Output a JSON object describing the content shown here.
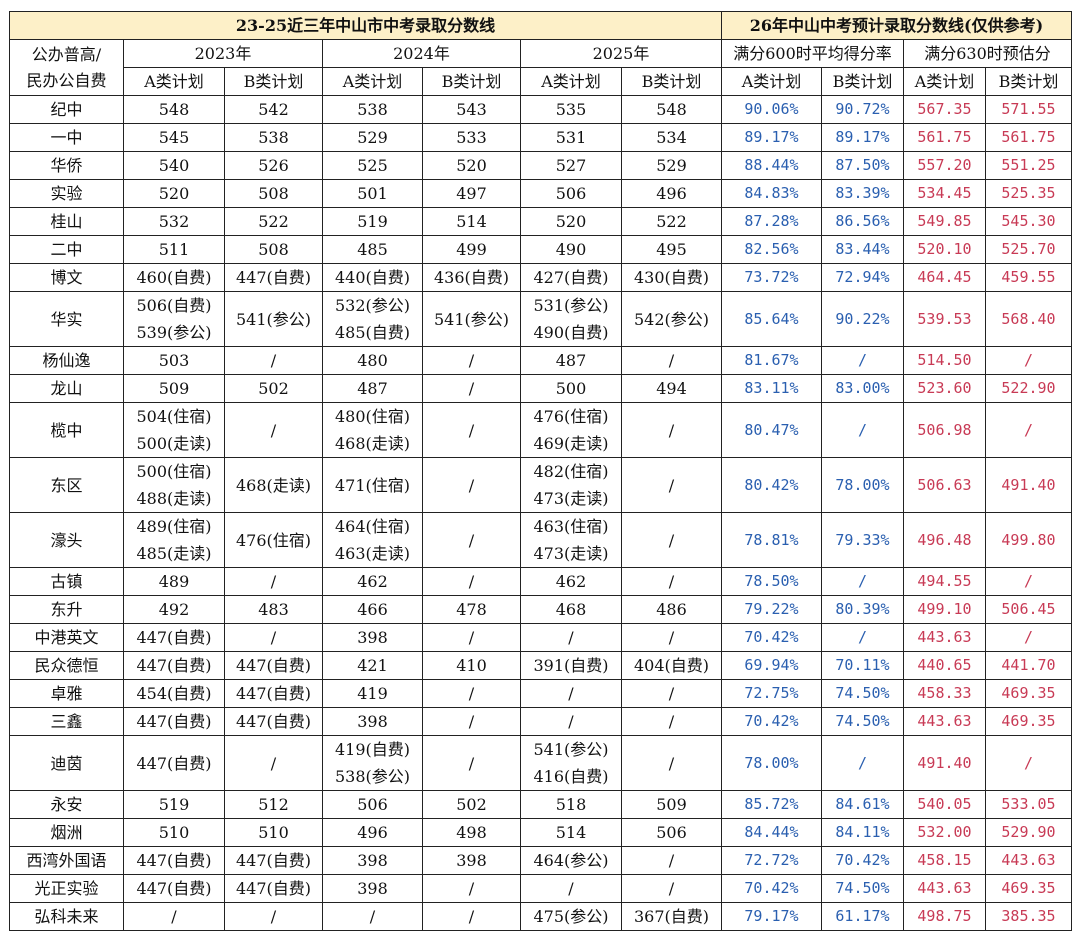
{
  "header": {
    "left_title": "23-25近三年中山市中考录取分数线",
    "right_title": "26年中山中考预计录取分数线(仅供参考)",
    "school_col_line1": "公办普高/",
    "school_col_line2": "民办公自费",
    "year_2023": "2023年",
    "year_2024": "2024年",
    "year_2025": "2025年",
    "rate_header": "满分600时平均得分率",
    "est_header": "满分630时预估分",
    "a_plan": "A类计划",
    "b_plan": "B类计划"
  },
  "rows": [
    {
      "school": "纪中",
      "y23a": [
        "548"
      ],
      "y23b": [
        "542"
      ],
      "y24a": [
        "538"
      ],
      "y24b": [
        "543"
      ],
      "y25a": [
        "535"
      ],
      "y25b": [
        "548"
      ],
      "rate_a": "90.06%",
      "rate_b": "90.72%",
      "est_a": "567.35",
      "est_b": "571.55"
    },
    {
      "school": "一中",
      "y23a": [
        "545"
      ],
      "y23b": [
        "538"
      ],
      "y24a": [
        "529"
      ],
      "y24b": [
        "533"
      ],
      "y25a": [
        "531"
      ],
      "y25b": [
        "534"
      ],
      "rate_a": "89.17%",
      "rate_b": "89.17%",
      "est_a": "561.75",
      "est_b": "561.75"
    },
    {
      "school": "华侨",
      "y23a": [
        "540"
      ],
      "y23b": [
        "526"
      ],
      "y24a": [
        "525"
      ],
      "y24b": [
        "520"
      ],
      "y25a": [
        "527"
      ],
      "y25b": [
        "529"
      ],
      "rate_a": "88.44%",
      "rate_b": "87.50%",
      "est_a": "557.20",
      "est_b": "551.25"
    },
    {
      "school": "实验",
      "y23a": [
        "520"
      ],
      "y23b": [
        "508"
      ],
      "y24a": [
        "501"
      ],
      "y24b": [
        "497"
      ],
      "y25a": [
        "506"
      ],
      "y25b": [
        "496"
      ],
      "rate_a": "84.83%",
      "rate_b": "83.39%",
      "est_a": "534.45",
      "est_b": "525.35"
    },
    {
      "school": "桂山",
      "y23a": [
        "532"
      ],
      "y23b": [
        "522"
      ],
      "y24a": [
        "519"
      ],
      "y24b": [
        "514"
      ],
      "y25a": [
        "520"
      ],
      "y25b": [
        "522"
      ],
      "rate_a": "87.28%",
      "rate_b": "86.56%",
      "est_a": "549.85",
      "est_b": "545.30"
    },
    {
      "school": "二中",
      "y23a": [
        "511"
      ],
      "y23b": [
        "508"
      ],
      "y24a": [
        "485"
      ],
      "y24b": [
        "499"
      ],
      "y25a": [
        "490"
      ],
      "y25b": [
        "495"
      ],
      "rate_a": "82.56%",
      "rate_b": "83.44%",
      "est_a": "520.10",
      "est_b": "525.70"
    },
    {
      "school": "博文",
      "y23a": [
        "460(自费)"
      ],
      "y23b": [
        "447(自费)"
      ],
      "y24a": [
        "440(自费)"
      ],
      "y24b": [
        "436(自费)"
      ],
      "y25a": [
        "427(自费)"
      ],
      "y25b": [
        "430(自费)"
      ],
      "rate_a": "73.72%",
      "rate_b": "72.94%",
      "est_a": "464.45",
      "est_b": "459.55"
    },
    {
      "school": "华实",
      "y23a": [
        "506(自费)",
        "539(参公)"
      ],
      "y23b": [
        "541(参公)"
      ],
      "y24a": [
        "532(参公)",
        "485(自费)"
      ],
      "y24b": [
        "541(参公)"
      ],
      "y25a": [
        "531(参公)",
        "490(自费)"
      ],
      "y25b": [
        "542(参公)"
      ],
      "rate_a": "85.64%",
      "rate_b": "90.22%",
      "est_a": "539.53",
      "est_b": "568.40"
    },
    {
      "school": "杨仙逸",
      "y23a": [
        "503"
      ],
      "y23b": [
        "/"
      ],
      "y24a": [
        "480"
      ],
      "y24b": [
        "/"
      ],
      "y25a": [
        "487"
      ],
      "y25b": [
        "/"
      ],
      "rate_a": "81.67%",
      "rate_b": "/",
      "est_a": "514.50",
      "est_b": "/"
    },
    {
      "school": "龙山",
      "y23a": [
        "509"
      ],
      "y23b": [
        "502"
      ],
      "y24a": [
        "487"
      ],
      "y24b": [
        "/"
      ],
      "y25a": [
        "500"
      ],
      "y25b": [
        "494"
      ],
      "rate_a": "83.11%",
      "rate_b": "83.00%",
      "est_a": "523.60",
      "est_b": "522.90"
    },
    {
      "school": "榄中",
      "y23a": [
        "504(住宿)",
        "500(走读)"
      ],
      "y23b": [
        "/"
      ],
      "y24a": [
        "480(住宿)",
        "468(走读)"
      ],
      "y24b": [
        "/"
      ],
      "y25a": [
        "476(住宿)",
        "469(走读)"
      ],
      "y25b": [
        "/"
      ],
      "rate_a": "80.47%",
      "rate_b": "/",
      "est_a": "506.98",
      "est_b": "/"
    },
    {
      "school": "东区",
      "y23a": [
        "500(住宿)",
        "488(走读)"
      ],
      "y23b": [
        "468(走读)"
      ],
      "y24a": [
        "471(住宿)"
      ],
      "y24b": [
        "/"
      ],
      "y25a": [
        "482(住宿)",
        "473(走读)"
      ],
      "y25b": [
        "/"
      ],
      "rate_a": "80.42%",
      "rate_b": "78.00%",
      "est_a": "506.63",
      "est_b": "491.40"
    },
    {
      "school": "濠头",
      "y23a": [
        "489(住宿)",
        "485(走读)"
      ],
      "y23b": [
        "476(住宿)"
      ],
      "y24a": [
        "464(住宿)",
        "463(走读)"
      ],
      "y24b": [
        "/"
      ],
      "y25a": [
        "463(住宿)",
        "473(走读)"
      ],
      "y25b": [
        "/"
      ],
      "rate_a": "78.81%",
      "rate_b": "79.33%",
      "est_a": "496.48",
      "est_b": "499.80"
    },
    {
      "school": "古镇",
      "y23a": [
        "489"
      ],
      "y23b": [
        "/"
      ],
      "y24a": [
        "462"
      ],
      "y24b": [
        "/"
      ],
      "y25a": [
        "462"
      ],
      "y25b": [
        "/"
      ],
      "rate_a": "78.50%",
      "rate_b": "/",
      "est_a": "494.55",
      "est_b": "/"
    },
    {
      "school": "东升",
      "y23a": [
        "492"
      ],
      "y23b": [
        "483"
      ],
      "y24a": [
        "466"
      ],
      "y24b": [
        "478"
      ],
      "y25a": [
        "468"
      ],
      "y25b": [
        "486"
      ],
      "rate_a": "79.22%",
      "rate_b": "80.39%",
      "est_a": "499.10",
      "est_b": "506.45"
    },
    {
      "school": "中港英文",
      "y23a": [
        "447(自费)"
      ],
      "y23b": [
        "/"
      ],
      "y24a": [
        "398"
      ],
      "y24b": [
        "/"
      ],
      "y25a": [
        "/"
      ],
      "y25b": [
        "/"
      ],
      "rate_a": "70.42%",
      "rate_b": "/",
      "est_a": "443.63",
      "est_b": "/"
    },
    {
      "school": "民众德恒",
      "y23a": [
        "447(自费)"
      ],
      "y23b": [
        "447(自费)"
      ],
      "y24a": [
        "421"
      ],
      "y24b": [
        "410"
      ],
      "y25a": [
        "391(自费)"
      ],
      "y25b": [
        "404(自费)"
      ],
      "rate_a": "69.94%",
      "rate_b": "70.11%",
      "est_a": "440.65",
      "est_b": "441.70"
    },
    {
      "school": "卓雅",
      "y23a": [
        "454(自费)"
      ],
      "y23b": [
        "447(自费)"
      ],
      "y24a": [
        "419"
      ],
      "y24b": [
        "/"
      ],
      "y25a": [
        "/"
      ],
      "y25b": [
        "/"
      ],
      "rate_a": "72.75%",
      "rate_b": "74.50%",
      "est_a": "458.33",
      "est_b": "469.35"
    },
    {
      "school": "三鑫",
      "y23a": [
        "447(自费)"
      ],
      "y23b": [
        "447(自费)"
      ],
      "y24a": [
        "398"
      ],
      "y24b": [
        "/"
      ],
      "y25a": [
        "/"
      ],
      "y25b": [
        "/"
      ],
      "rate_a": "70.42%",
      "rate_b": "74.50%",
      "est_a": "443.63",
      "est_b": "469.35"
    },
    {
      "school": "迪茵",
      "y23a": [
        "447(自费)"
      ],
      "y23b": [
        "/"
      ],
      "y24a": [
        "419(自费)",
        "538(参公)"
      ],
      "y24b": [
        "/"
      ],
      "y25a": [
        "541(参公)",
        "416(自费)"
      ],
      "y25b": [
        "/"
      ],
      "rate_a": "78.00%",
      "rate_b": "/",
      "est_a": "491.40",
      "est_b": "/"
    },
    {
      "school": "永安",
      "y23a": [
        "519"
      ],
      "y23b": [
        "512"
      ],
      "y24a": [
        "506"
      ],
      "y24b": [
        "502"
      ],
      "y25a": [
        "518"
      ],
      "y25b": [
        "509"
      ],
      "rate_a": "85.72%",
      "rate_b": "84.61%",
      "est_a": "540.05",
      "est_b": "533.05"
    },
    {
      "school": "烟洲",
      "y23a": [
        "510"
      ],
      "y23b": [
        "510"
      ],
      "y24a": [
        "496"
      ],
      "y24b": [
        "498"
      ],
      "y25a": [
        "514"
      ],
      "y25b": [
        "506"
      ],
      "rate_a": "84.44%",
      "rate_b": "84.11%",
      "est_a": "532.00",
      "est_b": "529.90"
    },
    {
      "school": "西湾外国语",
      "y23a": [
        "447(自费)"
      ],
      "y23b": [
        "447(自费)"
      ],
      "y24a": [
        "398"
      ],
      "y24b": [
        "398"
      ],
      "y25a": [
        "464(参公)"
      ],
      "y25b": [
        "/"
      ],
      "rate_a": "72.72%",
      "rate_b": "70.42%",
      "est_a": "458.15",
      "est_b": "443.63"
    },
    {
      "school": "光正实验",
      "y23a": [
        "447(自费)"
      ],
      "y23b": [
        "447(自费)"
      ],
      "y24a": [
        "398"
      ],
      "y24b": [
        "/"
      ],
      "y25a": [
        "/"
      ],
      "y25b": [
        "/"
      ],
      "rate_a": "70.42%",
      "rate_b": "74.50%",
      "est_a": "443.63",
      "est_b": "469.35"
    },
    {
      "school": "弘科未来",
      "y23a": [
        "/"
      ],
      "y23b": [
        "/"
      ],
      "y24a": [
        "/"
      ],
      "y24b": [
        "/"
      ],
      "y25a": [
        "475(参公)"
      ],
      "y25b": [
        "367(自费)"
      ],
      "rate_a": "79.17%",
      "rate_b": "61.17%",
      "est_a": "498.75",
      "est_b": "385.35"
    }
  ]
}
